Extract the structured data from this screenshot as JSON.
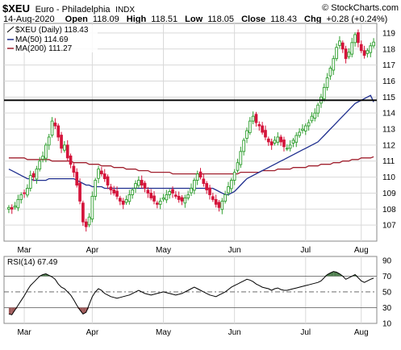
{
  "header": {
    "symbol": "$XEU",
    "name": "Euro - Philadelphia",
    "exchange": "INDX",
    "watermark": "© StockCharts.com",
    "date": "14-Aug-2020",
    "open_label": "Open",
    "open": "118.09",
    "high_label": "High",
    "high": "118.51",
    "low_label": "Low",
    "low": "118.05",
    "close_label": "Close",
    "close": "118.43",
    "chg_label": "Chg",
    "chg": "+0.28 (+0.24%)"
  },
  "legend": {
    "price": "$XEU (Daily) 118.43",
    "ma50": "MA(50) 114.69",
    "ma200": "MA(200) 111.27",
    "rsi": "RSI(14) 67.49"
  },
  "colors": {
    "candle_up": "#2e9e2e",
    "candle_down": "#d4143b",
    "ma50": "#1f2f8f",
    "ma200": "#a0202e",
    "rsi_line": "#000000",
    "rsi_fill_up": "#4f7f4f",
    "rsi_fill_down": "#a05a5a",
    "grid": "#d9d9d9"
  },
  "chart_data": [
    {
      "type": "candlestick",
      "title": "$XEU Euro - Philadelphia INDX",
      "x_labels": [
        "Mar",
        "Apr",
        "May",
        "Jun",
        "Jul",
        "Aug"
      ],
      "ylim": [
        106.0,
        119.6
      ],
      "y_ticks": [
        107,
        108,
        109,
        110,
        111,
        112,
        113,
        114,
        115,
        116,
        117,
        118,
        119
      ],
      "grid": true,
      "horizontal_line": 114.8,
      "close": [
        108.1,
        108.0,
        108.2,
        108.6,
        108.9,
        109.0,
        109.3,
        110.1,
        110.0,
        110.5,
        111.0,
        111.3,
        112.0,
        112.5,
        113.5,
        113.2,
        112.5,
        111.8,
        112.0,
        111.2,
        110.8,
        110.3,
        109.5,
        108.5,
        107.2,
        106.9,
        107.5,
        108.8,
        109.8,
        110.5,
        110.2,
        109.9,
        109.5,
        109.2,
        109.0,
        108.8,
        108.5,
        108.3,
        108.6,
        108.9,
        109.2,
        109.6,
        109.8,
        109.5,
        109.3,
        109.0,
        108.7,
        108.5,
        108.3,
        108.5,
        108.7,
        108.9,
        109.1,
        109.0,
        108.8,
        108.6,
        108.5,
        108.7,
        108.9,
        109.3,
        109.8,
        110.2,
        110.0,
        109.6,
        109.2,
        108.9,
        108.6,
        108.3,
        108.1,
        108.5,
        108.9,
        109.4,
        109.8,
        110.3,
        110.9,
        111.6,
        112.3,
        112.9,
        113.5,
        113.8,
        113.4,
        113.2,
        112.8,
        112.5,
        112.2,
        112.0,
        112.3,
        112.5,
        112.2,
        111.9,
        111.8,
        112.0,
        112.3,
        112.6,
        112.8,
        113.0,
        113.2,
        113.4,
        113.8,
        114.0,
        114.5,
        115.0,
        115.6,
        116.2,
        116.8,
        117.4,
        118.1,
        118.5,
        118.0,
        117.4,
        117.8,
        118.4,
        118.9,
        118.4,
        117.9,
        117.6,
        117.9,
        118.2,
        118.43
      ],
      "ma50": [
        110.5,
        110.4,
        110.3,
        110.2,
        110.1,
        110.0,
        109.9,
        109.9,
        109.8,
        109.8,
        109.8,
        109.8,
        109.8,
        109.9,
        109.9,
        109.9,
        109.9,
        109.9,
        109.9,
        109.9,
        109.9,
        109.9,
        109.8,
        109.7,
        109.6,
        109.5,
        109.5,
        109.4,
        109.4,
        109.4,
        109.4,
        109.3,
        109.3,
        109.3,
        109.3,
        109.3,
        109.3,
        109.3,
        109.3,
        109.3,
        109.3,
        109.3,
        109.3,
        109.3,
        109.3,
        109.3,
        109.3,
        109.3,
        109.3,
        109.3,
        109.3,
        109.3,
        109.3,
        109.3,
        109.3,
        109.3,
        109.3,
        109.3,
        109.3,
        109.3,
        109.3,
        109.3,
        109.3,
        109.3,
        109.3,
        109.3,
        109.3,
        109.2,
        109.1,
        109.0,
        108.9,
        108.9,
        109.0,
        109.1,
        109.3,
        109.5,
        109.7,
        109.9,
        110.0,
        110.1,
        110.2,
        110.3,
        110.4,
        110.5,
        110.6,
        110.7,
        110.8,
        110.9,
        111.0,
        111.1,
        111.2,
        111.3,
        111.4,
        111.5,
        111.6,
        111.7,
        111.8,
        111.9,
        112.0,
        112.1,
        112.2,
        112.4,
        112.6,
        112.8,
        113.0,
        113.2,
        113.4,
        113.6,
        113.8,
        114.0,
        114.2,
        114.4,
        114.6,
        114.7,
        114.8,
        114.9,
        115.0,
        115.1,
        114.69
      ],
      "ma200": [
        111.2,
        111.2,
        111.2,
        111.2,
        111.2,
        111.2,
        111.1,
        111.1,
        111.1,
        111.1,
        111.1,
        111.1,
        111.1,
        111.1,
        111.0,
        111.0,
        111.0,
        111.0,
        111.0,
        111.0,
        111.0,
        110.9,
        110.9,
        110.9,
        110.9,
        110.9,
        110.8,
        110.8,
        110.8,
        110.8,
        110.7,
        110.7,
        110.7,
        110.7,
        110.6,
        110.6,
        110.6,
        110.6,
        110.5,
        110.5,
        110.5,
        110.5,
        110.4,
        110.4,
        110.4,
        110.4,
        110.3,
        110.3,
        110.3,
        110.3,
        110.3,
        110.3,
        110.3,
        110.2,
        110.2,
        110.2,
        110.2,
        110.2,
        110.2,
        110.2,
        110.2,
        110.2,
        110.2,
        110.2,
        110.2,
        110.2,
        110.2,
        110.2,
        110.2,
        110.2,
        110.2,
        110.2,
        110.2,
        110.2,
        110.2,
        110.3,
        110.3,
        110.3,
        110.3,
        110.3,
        110.3,
        110.3,
        110.4,
        110.4,
        110.4,
        110.4,
        110.4,
        110.5,
        110.5,
        110.5,
        110.5,
        110.5,
        110.6,
        110.6,
        110.6,
        110.6,
        110.6,
        110.7,
        110.7,
        110.7,
        110.7,
        110.8,
        110.8,
        110.8,
        110.8,
        110.9,
        110.9,
        110.9,
        111.0,
        111.0,
        111.0,
        111.1,
        111.1,
        111.1,
        111.2,
        111.2,
        111.2,
        111.2,
        111.27
      ]
    },
    {
      "type": "line",
      "title": "RSI(14)",
      "x_labels": [
        "Mar",
        "Apr",
        "May",
        "Jun",
        "Jul",
        "Aug"
      ],
      "ylim": [
        10,
        95
      ],
      "y_ticks": [
        10,
        30,
        50,
        70,
        90
      ],
      "reference_lines": [
        30,
        50,
        70
      ],
      "values": [
        22,
        21,
        27,
        33,
        39,
        45,
        52,
        58,
        62,
        66,
        70,
        72,
        73,
        71,
        69,
        66,
        60,
        56,
        54,
        50,
        46,
        40,
        33,
        27,
        22,
        24,
        34,
        44,
        50,
        54,
        52,
        48,
        46,
        44,
        43,
        42,
        43,
        44,
        45,
        46,
        48,
        50,
        52,
        50,
        48,
        47,
        46,
        47,
        48,
        49,
        50,
        49,
        48,
        47,
        46,
        47,
        48,
        50,
        52,
        54,
        56,
        54,
        52,
        50,
        48,
        46,
        45,
        44,
        46,
        48,
        50,
        53,
        56,
        58,
        60,
        62,
        64,
        66,
        65,
        63,
        60,
        58,
        56,
        55,
        54,
        52,
        54,
        55,
        53,
        52,
        52,
        53,
        54,
        55,
        56,
        57,
        58,
        59,
        60,
        61,
        62,
        64,
        68,
        72,
        74,
        76,
        75,
        73,
        70,
        66,
        68,
        70,
        72,
        68,
        64,
        62,
        64,
        66,
        67.49
      ]
    }
  ]
}
